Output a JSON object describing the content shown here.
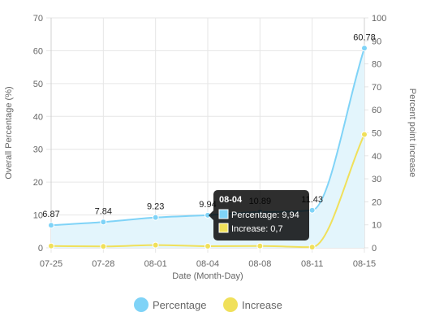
{
  "chart_data": {
    "type": "line",
    "title": "",
    "xlabel": "Date (Month-Day)",
    "ylabel_left": "Overall Percentage (%)",
    "ylabel_right": "Percent point increase",
    "x": [
      "07-25",
      "07-28",
      "08-01",
      "08-04",
      "08-08",
      "08-11",
      "08-15"
    ],
    "ylim_left": [
      0,
      70
    ],
    "yticks_left": [
      0,
      10,
      20,
      30,
      40,
      50,
      60,
      70
    ],
    "ylim_right": [
      0,
      100
    ],
    "yticks_right": [
      0,
      10,
      20,
      30,
      40,
      50,
      60,
      70,
      80,
      90,
      100
    ],
    "grid": true,
    "legend_position": "bottom",
    "series": [
      {
        "name": "Percentage",
        "axis": "left",
        "fill": true,
        "values": [
          6.87,
          7.84,
          9.23,
          9.94,
          10.89,
          11.43,
          60.78
        ],
        "labels": [
          "6.87",
          "7.84",
          "9.23",
          "9.94",
          "10.89",
          "11.43",
          "60.78"
        ],
        "color": "#7fd3f7",
        "fill_color": "#e3f5fc"
      },
      {
        "name": "Increase",
        "axis": "right",
        "fill": false,
        "values": [
          0.8,
          0.6,
          1.2,
          0.7,
          0.8,
          0.3,
          49.3
        ],
        "color": "#f0e05a"
      }
    ],
    "tooltip": {
      "index": 3,
      "title": "08-04",
      "lines": [
        "Percentage: 9,94",
        "Increase: 0,7"
      ]
    }
  }
}
